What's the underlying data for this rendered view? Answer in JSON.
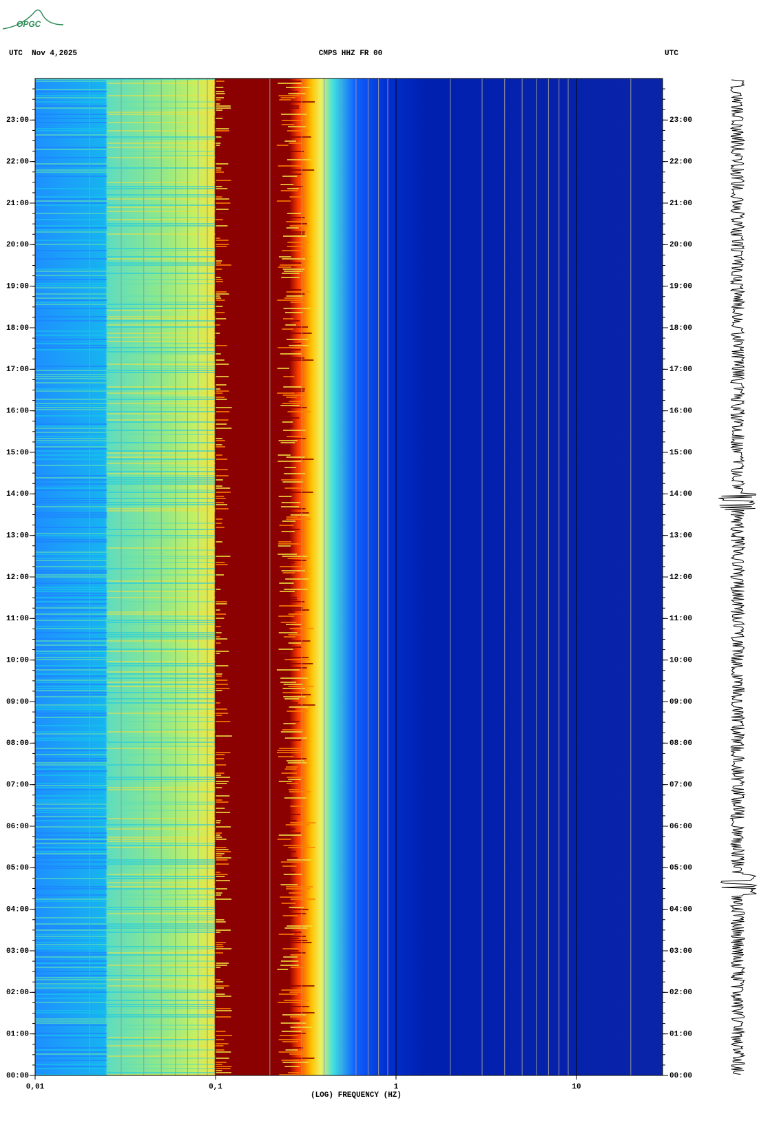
{
  "logo": "OPGC",
  "chart_data": {
    "type": "spectrogram",
    "title": "CMPS HHZ FR 00",
    "date_label": "UTC  Nov 4,2025",
    "right_label": "UTC",
    "xlabel": "(LOG) FREQUENCY (HZ)",
    "log_x": true,
    "xlim": [
      0.01,
      30
    ],
    "xticks": [
      {
        "value": 0.01,
        "label": "0,01"
      },
      {
        "value": 0.1,
        "label": "0,1"
      },
      1,
      10
    ],
    "ylim": [
      0,
      24
    ],
    "yticks": [
      {
        "value": 0,
        "label": "00:00"
      },
      {
        "value": 1,
        "label": "01:00"
      },
      {
        "value": 2,
        "label": "02:00"
      },
      {
        "value": 3,
        "label": "03:00"
      },
      {
        "value": 4,
        "label": "04:00"
      },
      {
        "value": 5,
        "label": "05:00"
      },
      {
        "value": 6,
        "label": "06:00"
      },
      {
        "value": 7,
        "label": "07:00"
      },
      {
        "value": 8,
        "label": "08:00"
      },
      {
        "value": 9,
        "label": "09:00"
      },
      {
        "value": 10,
        "label": "10:00"
      },
      {
        "value": 11,
        "label": "11:00"
      },
      {
        "value": 12,
        "label": "12:00"
      },
      {
        "value": 13,
        "label": "13:00"
      },
      {
        "value": 14,
        "label": "14:00"
      },
      {
        "value": 15,
        "label": "15:00"
      },
      {
        "value": 16,
        "label": "16:00"
      },
      {
        "value": 17,
        "label": "17:00"
      },
      {
        "value": 18,
        "label": "18:00"
      },
      {
        "value": 19,
        "label": "19:00"
      },
      {
        "value": 20,
        "label": "20:00"
      },
      {
        "value": 21,
        "label": "21:00"
      },
      {
        "value": 22,
        "label": "22:00"
      },
      {
        "value": 23,
        "label": "23:00"
      }
    ]
  }
}
